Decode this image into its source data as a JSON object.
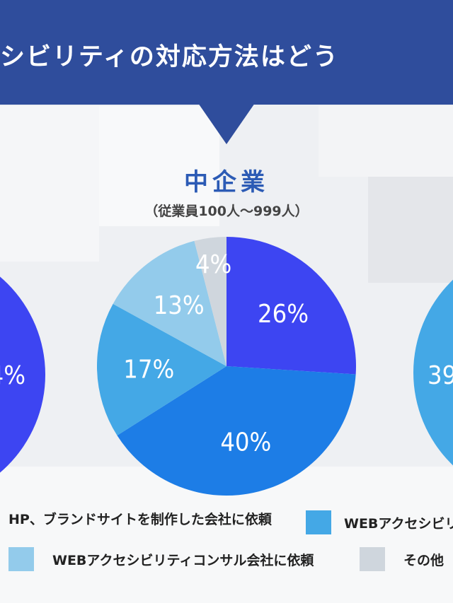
{
  "header": {
    "title": "シビリティの対応方法はどう",
    "color": "#2f4d9c"
  },
  "chart_data": {
    "type": "pie",
    "title": "中企業",
    "subtitle": "（従業員100人〜999人）",
    "series": [
      {
        "label": "26%",
        "value": 26,
        "color": "#3d45f2"
      },
      {
        "label": "40%",
        "value": 40,
        "color": "#1d7de6"
      },
      {
        "label": "17%",
        "value": 17,
        "color": "#44a8e6"
      },
      {
        "label": "13%",
        "value": 13,
        "color": "#93cbeb"
      },
      {
        "label": "4%",
        "value": 4,
        "color": "#cfd6dd"
      }
    ],
    "partial_neighbors": {
      "left_label": "4%",
      "left_color": "#3d45f2",
      "right_label": "39",
      "right_color": "#44a8e6"
    }
  },
  "legend": [
    {
      "text": "HP、ブランドサイトを制作した会社に依頼",
      "color": "#1d7de6"
    },
    {
      "text": "WEBアクセシビリ",
      "color": "#44a8e6"
    },
    {
      "text": "WEBアクセシビリティコンサル会社に依頼",
      "color": "#93cbeb"
    },
    {
      "text": "その他",
      "color": "#cfd6dd"
    }
  ]
}
